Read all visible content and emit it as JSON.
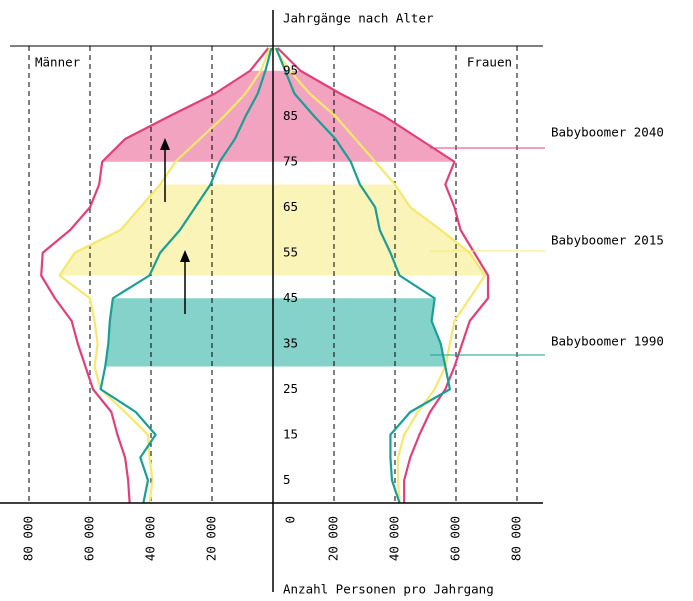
{
  "chart_data": {
    "type": "pyramid",
    "y_label": "Jahrgänge nach Alter",
    "x_label": "Anzahl Personen pro Jahrgang",
    "left_label": "Männer",
    "right_label": "Frauen",
    "x": [
      0,
      5,
      10,
      15,
      20,
      25,
      30,
      35,
      40,
      45,
      50,
      55,
      60,
      65,
      70,
      75,
      80,
      85,
      90,
      95,
      100
    ],
    "ylim": [
      0,
      100
    ],
    "yticks": [
      5,
      15,
      25,
      35,
      45,
      55,
      65,
      75,
      85,
      95
    ],
    "xlim": [
      -80000,
      80000
    ],
    "xticks": [
      {
        "value": -80000,
        "label": "80 000"
      },
      {
        "value": -60000,
        "label": "60 000"
      },
      {
        "value": -40000,
        "label": "40 000"
      },
      {
        "value": -20000,
        "label": "20 000"
      },
      0,
      {
        "value": 20000,
        "label": "20 000"
      },
      {
        "value": 40000,
        "label": "40 000"
      },
      {
        "value": 60000,
        "label": "60 000"
      },
      {
        "value": 80000,
        "label": "80 000"
      }
    ],
    "grid": true,
    "series": [
      {
        "color": "#e0407a",
        "band_color": "#f2a3bf",
        "band": {
          "label": "Babyboomer 2040",
          "range": [
            75,
            95
          ]
        },
        "men": [
          47000,
          47500,
          48500,
          51000,
          53000,
          59000,
          61500,
          64000,
          66000,
          71500,
          76000,
          75500,
          66500,
          60000,
          57000,
          56000,
          48500,
          34000,
          19000,
          7500,
          1500
        ],
        "women": [
          43000,
          43000,
          45000,
          48000,
          51500,
          56500,
          59500,
          62000,
          64500,
          70500,
          70500,
          66000,
          61500,
          59500,
          56500,
          59500,
          48000,
          36500,
          22000,
          9000,
          1500
        ]
      },
      {
        "color": "#f5e86e",
        "band_color": "#fbf4b8",
        "band": {
          "label": "Babyboomer 2015",
          "range": [
            50,
            70
          ]
        },
        "men": [
          40500,
          39500,
          40500,
          41000,
          48500,
          56500,
          58500,
          57500,
          58500,
          60000,
          70000,
          65000,
          50000,
          43500,
          37000,
          32000,
          24000,
          16000,
          9000,
          4000,
          1000
        ],
        "women": [
          41500,
          41000,
          41000,
          43000,
          47500,
          53000,
          56500,
          58000,
          59500,
          64500,
          69500,
          64500,
          55000,
          45000,
          40000,
          33500,
          27000,
          20500,
          12000,
          5500,
          500
        ]
      },
      {
        "color": "#1a9e96",
        "band_color": "#84d2ca",
        "band": {
          "label": "Babyboomer 1990",
          "range": [
            30,
            45
          ]
        },
        "men": [
          42500,
          41000,
          43500,
          38500,
          45000,
          56500,
          55000,
          54000,
          53500,
          52500,
          40500,
          37000,
          30500,
          25500,
          20500,
          17500,
          12500,
          9000,
          5000,
          2500,
          500
        ],
        "women": [
          41500,
          39000,
          38500,
          38500,
          45000,
          58000,
          56500,
          55000,
          52000,
          53000,
          41500,
          38500,
          35000,
          33500,
          28500,
          25500,
          20500,
          13500,
          7000,
          4000,
          1000
        ]
      }
    ]
  }
}
